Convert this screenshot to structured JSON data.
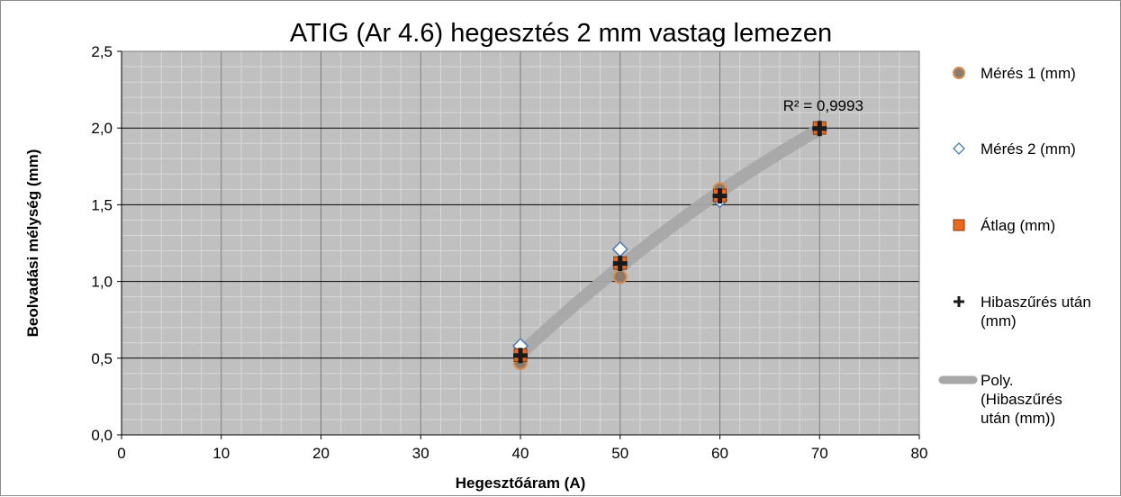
{
  "chart_data": {
    "type": "scatter",
    "title": "ATIG (Ar 4.6) hegesztés 2 mm vastag lemezen",
    "xlabel": "Hegesztőáram (A)",
    "ylabel": "Beolvadási mélység (mm)",
    "xlim": [
      0,
      80
    ],
    "ylim": [
      0,
      2.5
    ],
    "x_ticks": [
      0,
      10,
      20,
      30,
      40,
      50,
      60,
      70,
      80
    ],
    "x_tick_labels": [
      "0",
      "10",
      "20",
      "30",
      "40",
      "50",
      "60",
      "70",
      "80"
    ],
    "y_ticks": [
      0,
      0.5,
      1.0,
      1.5,
      2.0,
      2.5
    ],
    "y_tick_labels": [
      "0,0",
      "0,5",
      "1,0",
      "1,5",
      "2,0",
      "2,5"
    ],
    "grid": {
      "major": true,
      "minor": true
    },
    "legend_position": "right",
    "series": [
      {
        "name": "Mérés 1 (mm)",
        "marker": "circle",
        "color": "#d98c50",
        "fill": "#8c7b6c",
        "points": [
          [
            40,
            0.47
          ],
          [
            50,
            1.03
          ],
          [
            60,
            1.6
          ],
          [
            70,
            2.0
          ]
        ]
      },
      {
        "name": "Mérés 2 (mm)",
        "marker": "diamond",
        "color": "#4a7ab5",
        "fill": "#ffffff",
        "points": [
          [
            40,
            0.58
          ],
          [
            50,
            1.21
          ],
          [
            60,
            1.53
          ],
          [
            70,
            2.0
          ]
        ]
      },
      {
        "name": "Átlag (mm)",
        "marker": "square",
        "color": "#e86a20",
        "fill": "#e8691f",
        "points": [
          [
            40,
            0.52
          ],
          [
            50,
            1.12
          ],
          [
            60,
            1.56
          ],
          [
            70,
            2.0
          ]
        ]
      },
      {
        "name": "Hibaszűrés után (mm)",
        "marker": "plus",
        "color": "#1a1a1a",
        "points": [
          [
            40,
            0.52
          ],
          [
            50,
            1.12
          ],
          [
            60,
            1.56
          ],
          [
            70,
            2.0
          ]
        ]
      }
    ],
    "trendline": {
      "name": "Poly. (Hibaszűrés után (mm))",
      "type": "polynomial",
      "color": "#a8a8a8",
      "x_range": [
        40,
        70
      ],
      "points": [
        [
          40,
          0.52
        ],
        [
          50,
          1.12
        ],
        [
          60,
          1.56
        ],
        [
          70,
          2.0
        ]
      ],
      "r2_label": "R² = 0,9993"
    },
    "colors": {
      "plot_bg": "#c0c0c0",
      "major_grid": "#000000",
      "minor_grid": "#d8d8d8"
    }
  }
}
